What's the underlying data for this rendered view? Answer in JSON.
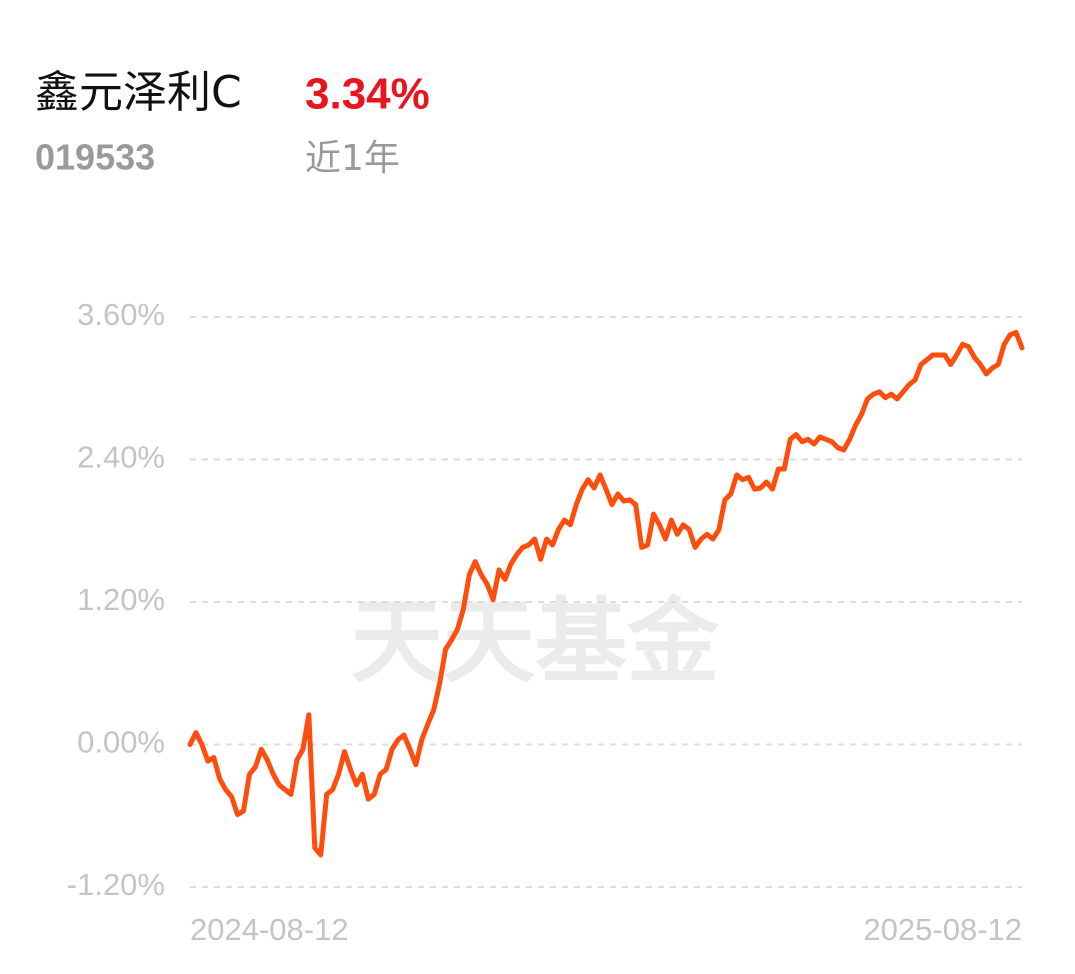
{
  "header": {
    "name": "鑫元泽利C",
    "return": "3.34%",
    "code": "019533",
    "period": "近1年"
  },
  "chart_data": {
    "type": "line",
    "watermark": "天天基金",
    "categories": [
      "2024-08-12",
      null,
      null,
      null,
      null,
      null,
      null,
      null,
      null,
      null,
      null,
      null,
      null,
      null,
      null,
      null,
      null,
      null,
      null,
      null,
      null,
      null,
      null,
      null,
      null,
      null,
      null,
      null,
      null,
      null,
      null,
      null,
      null,
      null,
      null,
      null,
      null,
      null,
      null,
      null,
      null,
      null,
      null,
      null,
      null,
      null,
      null,
      null,
      null,
      null,
      null,
      null,
      null,
      null,
      null,
      null,
      null,
      null,
      null,
      null,
      null,
      null,
      null,
      null,
      null,
      null,
      null,
      null,
      null,
      null,
      null,
      null,
      null,
      null,
      null,
      null,
      null,
      null,
      null,
      null,
      null,
      null,
      null,
      null,
      null,
      null,
      null,
      null,
      null,
      null,
      null,
      null,
      null,
      null,
      null,
      null,
      null,
      null,
      null,
      null,
      null,
      null,
      null,
      null,
      null,
      null,
      null,
      null,
      null,
      null,
      null,
      null,
      null,
      null,
      null,
      null,
      null,
      null,
      null,
      null,
      null,
      null,
      null,
      null,
      null,
      null,
      null,
      null,
      null,
      null,
      null,
      null,
      null,
      null,
      null,
      null,
      null,
      null,
      null,
      null,
      "2025-08-12"
    ],
    "series": [
      {
        "color": "#ff4d0d",
        "values": [
          0,
          0.1,
          0,
          -0.14,
          -0.11,
          -0.29,
          -0.38,
          -0.44,
          -0.59,
          -0.56,
          -0.25,
          -0.19,
          -0.04,
          -0.13,
          -0.25,
          -0.34,
          -0.38,
          -0.42,
          -0.13,
          -0.04,
          0.25,
          -0.87,
          -0.93,
          -0.42,
          -0.38,
          -0.25,
          -0.06,
          -0.21,
          -0.34,
          -0.25,
          -0.46,
          -0.42,
          -0.25,
          -0.21,
          -0.04,
          0.04,
          0.08,
          -0.04,
          -0.17,
          0.04,
          0.17,
          0.29,
          0.51,
          0.8,
          0.88,
          0.97,
          1.14,
          1.43,
          1.54,
          1.43,
          1.35,
          1.22,
          1.47,
          1.39,
          1.52,
          1.6,
          1.66,
          1.68,
          1.73,
          1.56,
          1.73,
          1.68,
          1.81,
          1.89,
          1.85,
          2.02,
          2.15,
          2.23,
          2.16,
          2.27,
          2.15,
          2.02,
          2.11,
          2.05,
          2.06,
          2.02,
          1.66,
          1.68,
          1.94,
          1.85,
          1.73,
          1.89,
          1.77,
          1.85,
          1.81,
          1.66,
          1.73,
          1.77,
          1.73,
          1.81,
          2.06,
          2.11,
          2.27,
          2.23,
          2.25,
          2.15,
          2.16,
          2.21,
          2.15,
          2.32,
          2.32,
          2.57,
          2.61,
          2.55,
          2.57,
          2.53,
          2.59,
          2.57,
          2.55,
          2.5,
          2.48,
          2.57,
          2.69,
          2.78,
          2.91,
          2.95,
          2.97,
          2.92,
          2.95,
          2.91,
          2.97,
          3.03,
          3.07,
          3.2,
          3.24,
          3.28,
          3.28,
          3.28,
          3.2,
          3.28,
          3.37,
          3.35,
          3.26,
          3.2,
          3.12,
          3.17,
          3.2,
          3.37,
          3.45,
          3.47,
          3.34
        ]
      }
    ],
    "ylim": [
      -1.2,
      3.6
    ],
    "yticks": [
      {
        "value": 3.6,
        "label": "3.60%"
      },
      {
        "value": 2.4,
        "label": "2.40%"
      },
      {
        "value": 1.2,
        "label": "1.20%"
      },
      {
        "value": 0,
        "label": "0.00%"
      },
      {
        "value": -1.2,
        "label": "-1.20%"
      }
    ],
    "grid": true
  }
}
